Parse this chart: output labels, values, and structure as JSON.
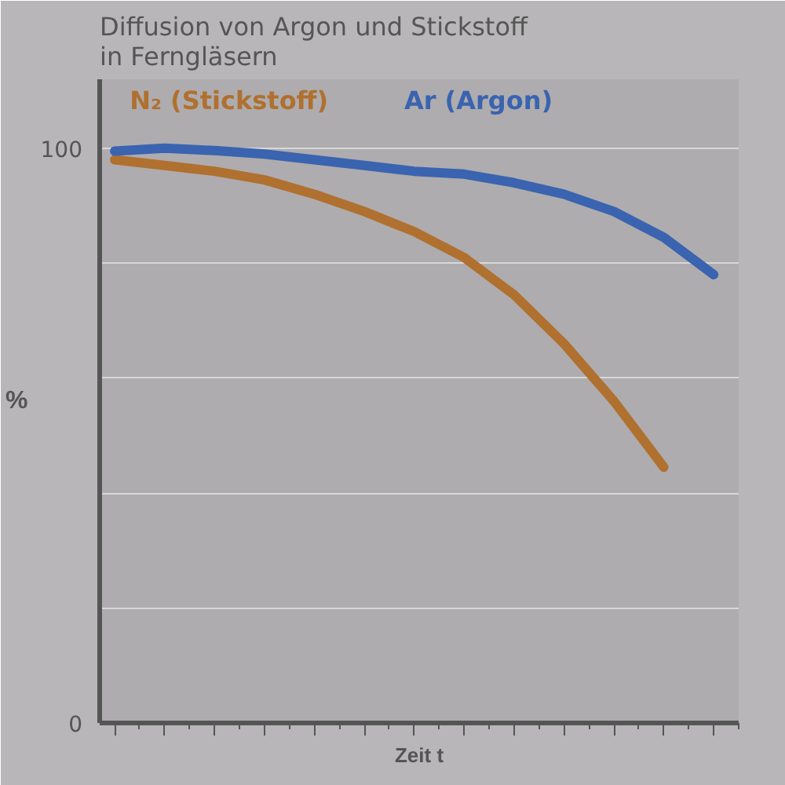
{
  "chart_data": {
    "type": "line",
    "title": "Diffusion von Argon und Stickstoff\nin Ferngläsern",
    "xlabel": "Zeit t",
    "ylabel": "%",
    "categories": [
      null,
      null,
      null,
      null,
      null,
      null,
      null,
      null,
      null,
      null,
      null,
      null,
      null
    ],
    "series": [
      {
        "name": "N₂ (Stickstoff)",
        "color": "#b0702f",
        "values": [
          98,
          97,
          96,
          94.5,
          92,
          89,
          85.5,
          81,
          74.5,
          66,
          56,
          44.5,
          null
        ]
      },
      {
        "name": "Ar (Argon)",
        "color": "#3a63b0",
        "values": [
          99.5,
          100,
          99.6,
          99,
          98,
          97,
          96,
          95.5,
          94,
          92,
          89,
          84.5,
          78
        ]
      }
    ],
    "ylim": [
      0,
      112
    ],
    "yticks": [
      {
        "value": 0,
        "label": "0"
      },
      {
        "value": 20,
        "label": null
      },
      {
        "value": 40,
        "label": null
      },
      {
        "value": 60,
        "label": null
      },
      {
        "value": 80,
        "label": null
      },
      100
    ],
    "grid": "y",
    "marker": "none",
    "line_style": "solid"
  }
}
